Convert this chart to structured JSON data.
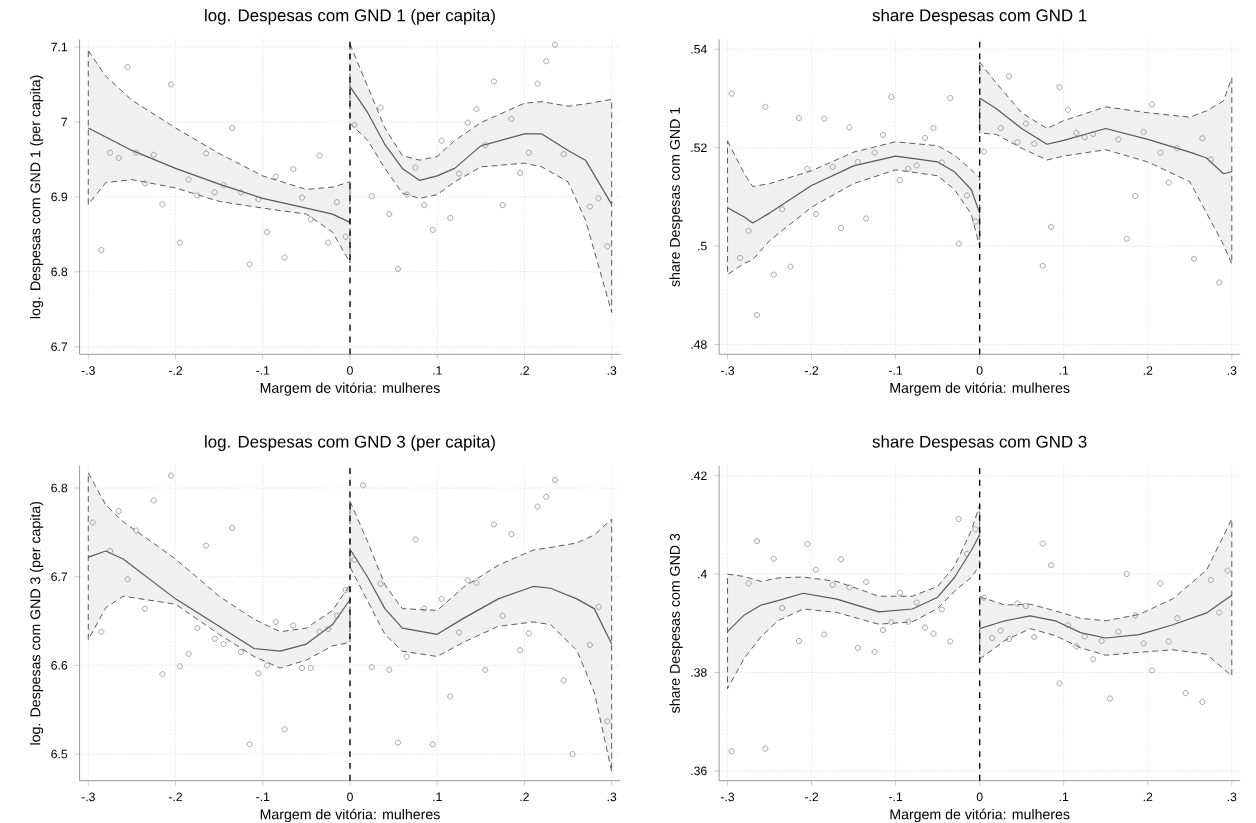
{
  "chart_data": [
    {
      "type": "line",
      "title": "log. Despesas com GND 1 (per capita)",
      "xlabel": "Margem de vitória: mulheres",
      "ylabel": "log. Despesas com GND 1 (per capita)",
      "grid": true,
      "xlim": [
        -0.31,
        0.31
      ],
      "ylim": [
        6.69,
        7.11
      ],
      "xticks": [
        {
          "value": -0.3,
          "label": "-.3"
        },
        {
          "value": -0.2,
          "label": "-.2"
        },
        {
          "value": -0.1,
          "label": "-.1"
        },
        0,
        {
          "value": 0.1,
          "label": ".1"
        },
        {
          "value": 0.2,
          "label": ".2"
        },
        {
          "value": 0.3,
          "label": ".3"
        }
      ],
      "yticks": [
        6.7,
        6.8,
        6.9,
        7,
        7.1
      ],
      "ref_lines": [
        {
          "axis": "x",
          "value": 0,
          "color": "#000000",
          "line_style": "dashed"
        }
      ],
      "series": [
        {
          "color": "#595959",
          "marker": "none",
          "line_style": "solid",
          "x": [
            -0.3,
            -0.28,
            -0.25,
            -0.2,
            -0.15,
            -0.1,
            -0.05,
            -0.02,
            0
          ],
          "values": [
            6.992,
            6.98,
            6.962,
            6.938,
            6.917,
            6.898,
            6.885,
            6.877,
            6.866
          ],
          "upper": [
            7.095,
            7.061,
            7.029,
            6.992,
            6.958,
            6.928,
            6.91,
            6.913,
            6.92
          ],
          "lower": [
            6.89,
            6.919,
            6.923,
            6.912,
            6.894,
            6.885,
            6.877,
            6.853,
            6.812
          ]
        },
        {
          "color": "#595959",
          "marker": "none",
          "line_style": "solid",
          "x": [
            0,
            0.02,
            0.04,
            0.06,
            0.08,
            0.1,
            0.12,
            0.15,
            0.2,
            0.22,
            0.25,
            0.27,
            0.3
          ],
          "values": [
            7.047,
            7.013,
            6.97,
            6.938,
            6.922,
            6.928,
            6.938,
            6.968,
            6.984,
            6.984,
            6.962,
            6.949,
            6.89
          ],
          "upper": [
            7.104,
            7.048,
            6.992,
            6.955,
            6.949,
            6.954,
            6.975,
            6.999,
            7.025,
            7.027,
            7.021,
            7.024,
            7.03
          ],
          "lower": [
            6.998,
            6.976,
            6.938,
            6.905,
            6.898,
            6.903,
            6.92,
            6.94,
            6.945,
            6.94,
            6.92,
            6.869,
            6.746
          ]
        },
        {
          "type": "scatter",
          "color": "#8c8c8c",
          "marker": "circle",
          "x": [
            -0.285,
            -0.275,
            -0.265,
            -0.255,
            -0.245,
            -0.235,
            -0.225,
            -0.215,
            -0.205,
            -0.195,
            -0.185,
            -0.175,
            -0.165,
            -0.155,
            -0.145,
            -0.135,
            -0.125,
            -0.115,
            -0.105,
            -0.095,
            -0.085,
            -0.075,
            -0.065,
            -0.055,
            -0.045,
            -0.035,
            -0.025,
            -0.015,
            -0.005,
            0.005,
            0.025,
            0.035,
            0.045,
            0.055,
            0.065,
            0.075,
            0.085,
            0.095,
            0.105,
            0.115,
            0.125,
            0.135,
            0.145,
            0.155,
            0.165,
            0.175,
            0.185,
            0.195,
            0.205,
            0.215,
            0.225,
            0.235,
            0.245,
            0.275,
            0.285,
            0.295
          ],
          "values": [
            6.829,
            6.959,
            6.952,
            7.073,
            6.959,
            6.918,
            6.956,
            6.89,
            7.05,
            6.839,
            6.923,
            6.902,
            6.958,
            6.906,
            6.916,
            6.992,
            6.906,
            6.81,
            6.897,
            6.853,
            6.927,
            6.819,
            6.937,
            6.899,
            6.87,
            6.955,
            6.839,
            6.893,
            6.847,
            6.996,
            6.901,
            7.019,
            6.877,
            6.804,
            6.903,
            6.939,
            6.889,
            6.856,
            6.975,
            6.872,
            6.931,
            6.999,
            7.017,
            6.969,
            7.054,
            6.889,
            7.004,
            6.932,
            6.959,
            7.051,
            7.081,
            7.103,
            6.957,
            6.887,
            6.898,
            6.834
          ]
        }
      ]
    },
    {
      "type": "line",
      "title": "share Despesas com GND 1",
      "xlabel": "Margem de vitória: mulheres",
      "ylabel": "share Despesas com GND 1",
      "grid": true,
      "xlim": [
        -0.31,
        0.31
      ],
      "ylim": [
        0.478,
        0.542
      ],
      "xticks": [
        {
          "value": -0.3,
          "label": "-.3"
        },
        {
          "value": -0.2,
          "label": "-.2"
        },
        {
          "value": -0.1,
          "label": "-.1"
        },
        0,
        {
          "value": 0.1,
          "label": ".1"
        },
        {
          "value": 0.2,
          "label": ".2"
        },
        {
          "value": 0.3,
          "label": ".3"
        }
      ],
      "yticks": [
        {
          "value": 0.48,
          "label": ".48"
        },
        {
          "value": 0.5,
          "label": ".5"
        },
        {
          "value": 0.52,
          "label": ".52"
        },
        {
          "value": 0.54,
          "label": ".54"
        }
      ],
      "ref_lines": [
        {
          "axis": "x",
          "value": 0,
          "color": "#000000",
          "line_style": "dashed"
        }
      ],
      "series": [
        {
          "color": "#595959",
          "marker": "none",
          "line_style": "solid",
          "x": [
            -0.3,
            -0.28,
            -0.27,
            -0.25,
            -0.2,
            -0.15,
            -0.1,
            -0.05,
            -0.03,
            -0.01,
            0
          ],
          "values": [
            0.5078,
            0.5059,
            0.5047,
            0.5067,
            0.5123,
            0.5163,
            0.5183,
            0.5171,
            0.5151,
            0.5115,
            0.5067
          ],
          "upper": [
            0.5214,
            0.5147,
            0.5121,
            0.5127,
            0.5153,
            0.5191,
            0.5212,
            0.5204,
            0.5185,
            0.5155,
            0.5139
          ],
          "lower": [
            0.4942,
            0.4965,
            0.4972,
            0.5011,
            0.5079,
            0.5127,
            0.5155,
            0.5143,
            0.5115,
            0.5065,
            0.4999
          ]
        },
        {
          "color": "#595959",
          "marker": "none",
          "line_style": "solid",
          "x": [
            0,
            0.02,
            0.05,
            0.08,
            0.1,
            0.15,
            0.2,
            0.25,
            0.27,
            0.29,
            0.3
          ],
          "values": [
            0.5301,
            0.5279,
            0.5239,
            0.5207,
            0.5215,
            0.5239,
            0.5217,
            0.5191,
            0.5179,
            0.5147,
            0.5151
          ],
          "upper": [
            0.5374,
            0.5331,
            0.5271,
            0.5239,
            0.5255,
            0.5283,
            0.5271,
            0.5262,
            0.5275,
            0.5295,
            0.5342
          ],
          "lower": [
            0.523,
            0.5227,
            0.5199,
            0.5175,
            0.5183,
            0.5196,
            0.5171,
            0.5131,
            0.5067,
            0.5003,
            0.4964
          ]
        },
        {
          "type": "scatter",
          "color": "#8c8c8c",
          "marker": "circle",
          "x": [
            -0.295,
            -0.285,
            -0.275,
            -0.265,
            -0.255,
            -0.245,
            -0.235,
            -0.225,
            -0.215,
            -0.205,
            -0.195,
            -0.185,
            -0.175,
            -0.165,
            -0.155,
            -0.145,
            -0.135,
            -0.125,
            -0.115,
            -0.105,
            -0.095,
            -0.085,
            -0.075,
            -0.065,
            -0.055,
            -0.045,
            -0.035,
            -0.025,
            -0.015,
            -0.005,
            0.005,
            0.025,
            0.035,
            0.045,
            0.055,
            0.065,
            0.075,
            0.085,
            0.095,
            0.105,
            0.115,
            0.125,
            0.135,
            0.165,
            0.175,
            0.185,
            0.195,
            0.205,
            0.215,
            0.225,
            0.235,
            0.255,
            0.265,
            0.275,
            0.285
          ],
          "values": [
            0.531,
            0.4976,
            0.5031,
            0.486,
            0.5283,
            0.4942,
            0.5075,
            0.4958,
            0.526,
            0.5157,
            0.5065,
            0.5259,
            0.5161,
            0.5037,
            0.5241,
            0.5171,
            0.5056,
            0.519,
            0.5226,
            0.5303,
            0.5134,
            0.5157,
            0.5164,
            0.522,
            0.524,
            0.517,
            0.5301,
            0.5005,
            0.5103,
            0.505,
            0.5192,
            0.524,
            0.5345,
            0.5211,
            0.5249,
            0.5208,
            0.496,
            0.5039,
            0.5323,
            0.5277,
            0.523,
            0.5221,
            0.5228,
            0.5217,
            0.5015,
            0.5102,
            0.5232,
            0.5288,
            0.519,
            0.5129,
            0.5199,
            0.4974,
            0.5219,
            0.5176,
            0.4926
          ]
        }
      ]
    },
    {
      "type": "line",
      "title": "log. Despesas com GND 3 (per capita)",
      "xlabel": "Margem de vitória: mulheres",
      "ylabel": "log. Despesas com GND 3 (per capita)",
      "grid": true,
      "xlim": [
        -0.31,
        0.31
      ],
      "ylim": [
        6.47,
        6.825
      ],
      "xticks": [
        {
          "value": -0.3,
          "label": "-.3"
        },
        {
          "value": -0.2,
          "label": "-.2"
        },
        {
          "value": -0.1,
          "label": "-.1"
        },
        0,
        {
          "value": 0.1,
          "label": ".1"
        },
        {
          "value": 0.2,
          "label": ".2"
        },
        {
          "value": 0.3,
          "label": ".3"
        }
      ],
      "yticks": [
        6.5,
        6.6,
        6.7,
        6.8
      ],
      "ref_lines": [
        {
          "axis": "x",
          "value": 0,
          "color": "#000000",
          "line_style": "dashed"
        }
      ],
      "series": [
        {
          "color": "#595959",
          "marker": "none",
          "line_style": "solid",
          "x": [
            -0.3,
            -0.28,
            -0.26,
            -0.2,
            -0.15,
            -0.11,
            -0.08,
            -0.05,
            -0.02,
            0
          ],
          "values": [
            6.722,
            6.729,
            6.72,
            6.675,
            6.644,
            6.619,
            6.616,
            6.624,
            6.646,
            6.674
          ],
          "upper": [
            6.817,
            6.781,
            6.762,
            6.72,
            6.678,
            6.652,
            6.638,
            6.642,
            6.662,
            6.691
          ],
          "lower": [
            6.629,
            6.665,
            6.678,
            6.669,
            6.635,
            6.61,
            6.597,
            6.606,
            6.622,
            6.626
          ]
        },
        {
          "color": "#595959",
          "marker": "none",
          "line_style": "solid",
          "x": [
            0,
            0.02,
            0.04,
            0.06,
            0.1,
            0.13,
            0.17,
            0.21,
            0.23,
            0.26,
            0.28,
            0.3
          ],
          "values": [
            6.731,
            6.7,
            6.664,
            6.642,
            6.635,
            6.653,
            6.675,
            6.689,
            6.687,
            6.675,
            6.664,
            6.624
          ],
          "upper": [
            6.785,
            6.74,
            6.691,
            6.664,
            6.662,
            6.688,
            6.713,
            6.73,
            6.733,
            6.738,
            6.747,
            6.765
          ],
          "lower": [
            6.711,
            6.673,
            6.635,
            6.616,
            6.61,
            6.626,
            6.644,
            6.649,
            6.646,
            6.617,
            6.57,
            6.48
          ]
        },
        {
          "type": "scatter",
          "color": "#8c8c8c",
          "marker": "circle",
          "x": [
            -0.295,
            -0.285,
            -0.275,
            -0.265,
            -0.255,
            -0.245,
            -0.235,
            -0.225,
            -0.215,
            -0.205,
            -0.195,
            -0.185,
            -0.175,
            -0.165,
            -0.155,
            -0.145,
            -0.135,
            -0.125,
            -0.115,
            -0.105,
            -0.095,
            -0.085,
            -0.075,
            -0.065,
            -0.055,
            -0.045,
            -0.035,
            -0.025,
            -0.015,
            -0.005,
            0.005,
            0.015,
            0.025,
            0.035,
            0.045,
            0.055,
            0.065,
            0.075,
            0.085,
            0.095,
            0.105,
            0.115,
            0.125,
            0.135,
            0.145,
            0.155,
            0.165,
            0.175,
            0.185,
            0.195,
            0.205,
            0.215,
            0.225,
            0.235,
            0.245,
            0.255,
            0.275,
            0.285,
            0.295
          ],
          "values": [
            6.761,
            6.638,
            6.729,
            6.774,
            6.697,
            6.752,
            6.664,
            6.786,
            6.59,
            6.814,
            6.599,
            6.613,
            6.642,
            6.735,
            6.63,
            6.624,
            6.755,
            6.615,
            6.511,
            6.591,
            6.6,
            6.649,
            6.528,
            6.645,
            6.597,
            6.597,
            6.638,
            6.641,
            6.656,
            6.685,
            6.719,
            6.803,
            6.598,
            6.692,
            6.595,
            6.513,
            6.61,
            6.742,
            6.664,
            6.511,
            6.675,
            6.565,
            6.637,
            6.696,
            6.693,
            6.595,
            6.759,
            6.656,
            6.748,
            6.617,
            6.636,
            6.779,
            6.79,
            6.809,
            6.583,
            6.5,
            6.623,
            6.666,
            6.537
          ]
        }
      ]
    },
    {
      "type": "line",
      "title": "share Despesas com GND 3",
      "xlabel": "Margem de vitória: mulheres",
      "ylabel": "share Despesas com GND 3",
      "grid": true,
      "xlim": [
        -0.31,
        0.31
      ],
      "ylim": [
        0.358,
        0.422
      ],
      "xticks": [
        {
          "value": -0.3,
          "label": "-.3"
        },
        {
          "value": -0.2,
          "label": "-.2"
        },
        {
          "value": -0.1,
          "label": "-.1"
        },
        0,
        {
          "value": 0.1,
          "label": ".1"
        },
        {
          "value": 0.2,
          "label": ".2"
        },
        {
          "value": 0.3,
          "label": ".3"
        }
      ],
      "yticks": [
        {
          "value": 0.36,
          "label": ".36"
        },
        {
          "value": 0.38,
          "label": ".38"
        },
        {
          "value": 0.4,
          "label": ".4"
        },
        {
          "value": 0.42,
          "label": ".42"
        }
      ],
      "ref_lines": [
        {
          "axis": "x",
          "value": 0,
          "color": "#000000",
          "line_style": "dashed"
        }
      ],
      "series": [
        {
          "color": "#595959",
          "marker": "none",
          "line_style": "solid",
          "x": [
            -0.3,
            -0.28,
            -0.26,
            -0.24,
            -0.21,
            -0.17,
            -0.12,
            -0.08,
            -0.05,
            -0.03,
            -0.01,
            0
          ],
          "values": [
            0.3883,
            0.3917,
            0.3937,
            0.3946,
            0.3961,
            0.3949,
            0.3923,
            0.3929,
            0.3953,
            0.3993,
            0.4048,
            0.408
          ],
          "upper": [
            0.4,
            0.3995,
            0.3985,
            0.3992,
            0.3994,
            0.3985,
            0.3955,
            0.3955,
            0.3975,
            0.4016,
            0.4088,
            0.414
          ],
          "lower": [
            0.3767,
            0.3829,
            0.3873,
            0.3905,
            0.3929,
            0.3922,
            0.3898,
            0.3903,
            0.393,
            0.3965,
            0.3993,
            0.4018
          ]
        },
        {
          "color": "#595959",
          "marker": "none",
          "line_style": "solid",
          "x": [
            0,
            0.03,
            0.06,
            0.09,
            0.12,
            0.15,
            0.19,
            0.23,
            0.27,
            0.3
          ],
          "values": [
            0.3889,
            0.3905,
            0.3915,
            0.3905,
            0.3881,
            0.387,
            0.3877,
            0.3897,
            0.3921,
            0.3957
          ],
          "upper": [
            0.3954,
            0.3937,
            0.3939,
            0.3925,
            0.391,
            0.3905,
            0.3918,
            0.395,
            0.4008,
            0.4112
          ],
          "lower": [
            0.3827,
            0.3865,
            0.3889,
            0.3875,
            0.385,
            0.3835,
            0.3841,
            0.3846,
            0.3837,
            0.3793
          ]
        },
        {
          "type": "scatter",
          "color": "#8c8c8c",
          "marker": "circle",
          "x": [
            -0.295,
            -0.275,
            -0.265,
            -0.255,
            -0.245,
            -0.235,
            -0.215,
            -0.205,
            -0.195,
            -0.185,
            -0.175,
            -0.165,
            -0.155,
            -0.145,
            -0.135,
            -0.125,
            -0.115,
            -0.105,
            -0.095,
            -0.085,
            -0.075,
            -0.065,
            -0.055,
            -0.045,
            -0.035,
            -0.025,
            -0.015,
            -0.005,
            0.005,
            0.015,
            0.025,
            0.035,
            0.045,
            0.055,
            0.065,
            0.075,
            0.085,
            0.095,
            0.105,
            0.115,
            0.125,
            0.135,
            0.145,
            0.155,
            0.165,
            0.175,
            0.185,
            0.195,
            0.205,
            0.215,
            0.225,
            0.235,
            0.245,
            0.265,
            0.275,
            0.285,
            0.295
          ],
          "values": [
            0.364,
            0.3981,
            0.4067,
            0.3645,
            0.4031,
            0.3931,
            0.3864,
            0.4061,
            0.4009,
            0.3877,
            0.3978,
            0.403,
            0.3973,
            0.385,
            0.3984,
            0.3842,
            0.3886,
            0.3902,
            0.3962,
            0.3903,
            0.3942,
            0.3891,
            0.3879,
            0.3928,
            0.3863,
            0.4112,
            0.4041,
            0.4091,
            0.3952,
            0.387,
            0.3885,
            0.3868,
            0.394,
            0.3935,
            0.3872,
            0.4062,
            0.4018,
            0.3778,
            0.3896,
            0.3853,
            0.3873,
            0.3827,
            0.3864,
            0.3747,
            0.3883,
            0.4,
            0.3916,
            0.3859,
            0.3804,
            0.3981,
            0.3863,
            0.391,
            0.3758,
            0.374,
            0.3988,
            0.3922,
            0.4007
          ]
        }
      ]
    }
  ]
}
